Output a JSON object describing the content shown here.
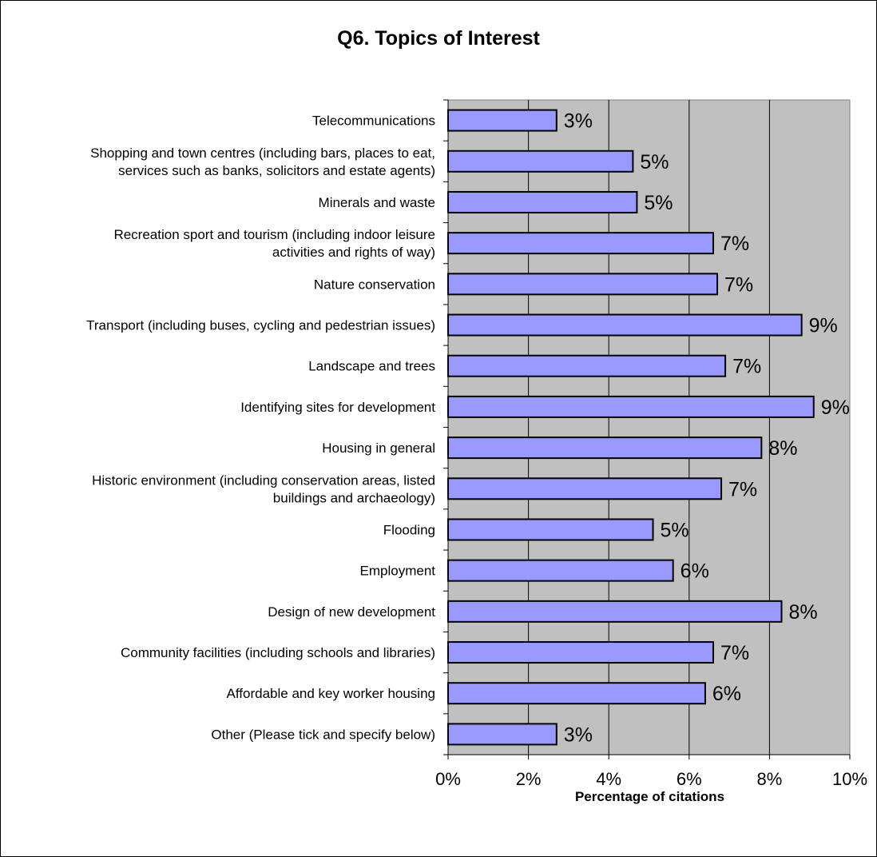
{
  "chart_data": {
    "type": "bar",
    "orientation": "horizontal",
    "title": "Q6. Topics of Interest",
    "xlabel": "Percentage of citations",
    "ylabel": "",
    "xlim": [
      0,
      10
    ],
    "xticks": [
      "0%",
      "2%",
      "4%",
      "6%",
      "8%",
      "10%"
    ],
    "grid": true,
    "legend": "none",
    "colors": {
      "bar": "#9999FF",
      "plot_bg": "#C0C0C0",
      "bar_border": "#000000"
    },
    "categories": [
      [
        "Telecommunications"
      ],
      [
        "Shopping and town centres (including bars, places to eat,",
        "services such as banks, solicitors and estate agents)"
      ],
      [
        "Minerals and waste"
      ],
      [
        "Recreation sport and tourism (including indoor leisure",
        "activities and rights of way)"
      ],
      [
        "Nature conservation"
      ],
      [
        "Transport (including buses, cycling and pedestrian issues)"
      ],
      [
        "Landscape and trees"
      ],
      [
        "Identifying sites for development"
      ],
      [
        "Housing in general"
      ],
      [
        "Historic environment (including conservation areas, listed",
        "buildings and archaeology)"
      ],
      [
        "Flooding"
      ],
      [
        "Employment"
      ],
      [
        "Design of new development"
      ],
      [
        "Community facilities (including schools and libraries)"
      ],
      [
        "Affordable and key worker housing"
      ],
      [
        "Other (Please tick and specify below)"
      ]
    ],
    "values": [
      2.7,
      4.6,
      4.7,
      6.6,
      6.7,
      8.8,
      6.9,
      9.1,
      7.8,
      6.8,
      5.1,
      5.6,
      8.3,
      6.6,
      6.4,
      2.7
    ],
    "data_labels": [
      "3%",
      "5%",
      "5%",
      "7%",
      "7%",
      "9%",
      "7%",
      "9%",
      "8%",
      "7%",
      "5%",
      "6%",
      "8%",
      "7%",
      "6%",
      "3%"
    ]
  }
}
